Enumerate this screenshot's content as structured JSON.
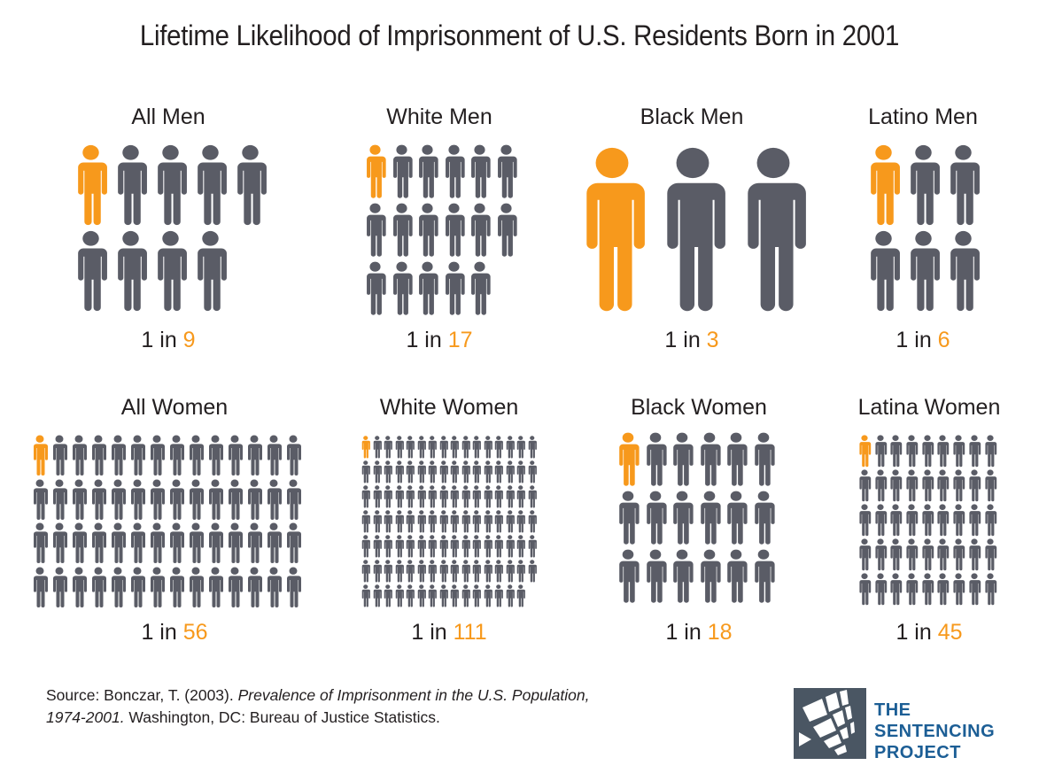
{
  "title": "Lifetime Likelihood of Imprisonment of U.S. Residents Born in 2001",
  "colors": {
    "highlight": "#f7991c",
    "base": "#5a5c66",
    "logo_blue": "#1c5e95",
    "logo_gray": "#4a5663"
  },
  "chart_data": {
    "type": "pictogram",
    "title": "Lifetime Likelihood of Imprisonment of U.S. Residents Born in 2001",
    "ratio_prefix": "1 in",
    "groups": [
      {
        "label": "All Men",
        "one_in": 9
      },
      {
        "label": "White Men",
        "one_in": 17
      },
      {
        "label": "Black Men",
        "one_in": 3
      },
      {
        "label": "Latino Men",
        "one_in": 6
      },
      {
        "label": "All Women",
        "one_in": 56
      },
      {
        "label": "White Women",
        "one_in": 111
      },
      {
        "label": "Black Women",
        "one_in": 18
      },
      {
        "label": "Latina Women",
        "one_in": 45
      }
    ]
  },
  "source": {
    "prefix": "Source: Bonczar, T. (2003). ",
    "title_italic_1": "Prevalence of Imprisonment in the U.S. Population,",
    "title_italic_2": "1974-2001.",
    "suffix": " Washington, DC: Bureau of Justice Statistics."
  },
  "logo": {
    "line1": "THE",
    "line2": "SENTENCING",
    "line3": "PROJECT"
  }
}
